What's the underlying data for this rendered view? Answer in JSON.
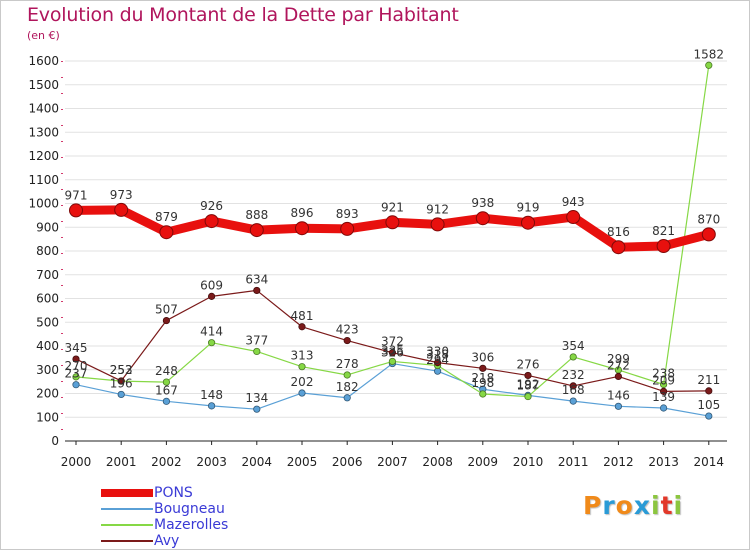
{
  "title": "Evolution du Montant de la Dette par Habitant",
  "unit_label": "(en €)",
  "brand": {
    "letters": [
      "P",
      "r",
      "o",
      "x",
      "i",
      "t",
      "i"
    ],
    "colors": [
      "#f08a1a",
      "#2a9bd6",
      "#f08a1a",
      "#2a9bd6",
      "#8cc63f",
      "#e2382a",
      "#8cc63f"
    ]
  },
  "chart_data": {
    "type": "line",
    "title": "Evolution du Montant de la Dette par Habitant",
    "ylabel": "(en €)",
    "xlabel": "",
    "ylim": [
      0,
      1600
    ],
    "yticks": [
      0,
      100,
      200,
      300,
      400,
      500,
      600,
      700,
      800,
      900,
      1000,
      1100,
      1200,
      1300,
      1400,
      1500,
      1600
    ],
    "x": [
      "2000",
      "2001",
      "2002",
      "2003",
      "2004",
      "2005",
      "2006",
      "2007",
      "2008",
      "2009",
      "2010",
      "2011",
      "2012",
      "2013",
      "2014"
    ],
    "grid": "horizontal",
    "legend_position": "bottom-left",
    "series": [
      {
        "name": "PONS",
        "color": "#e8100e",
        "values": [
          971,
          973,
          879,
          926,
          888,
          896,
          893,
          921,
          912,
          938,
          919,
          943,
          816,
          821,
          870
        ]
      },
      {
        "name": "Bougneau",
        "color": "#5aa0d6",
        "values": [
          237,
          196,
          167,
          148,
          134,
          202,
          182,
          326,
          294,
          218,
          192,
          168,
          146,
          139,
          105
        ]
      },
      {
        "name": "Mazerolles",
        "color": "#86d845",
        "values": [
          270,
          252,
          248,
          414,
          377,
          313,
          278,
          335,
          318,
          198,
          187,
          354,
          299,
          238,
          1582
        ]
      },
      {
        "name": "Avy",
        "color": "#7b1a1a",
        "values": [
          345,
          253,
          507,
          609,
          634,
          481,
          423,
          372,
          330,
          306,
          276,
          232,
          272,
          209,
          211
        ]
      }
    ]
  }
}
